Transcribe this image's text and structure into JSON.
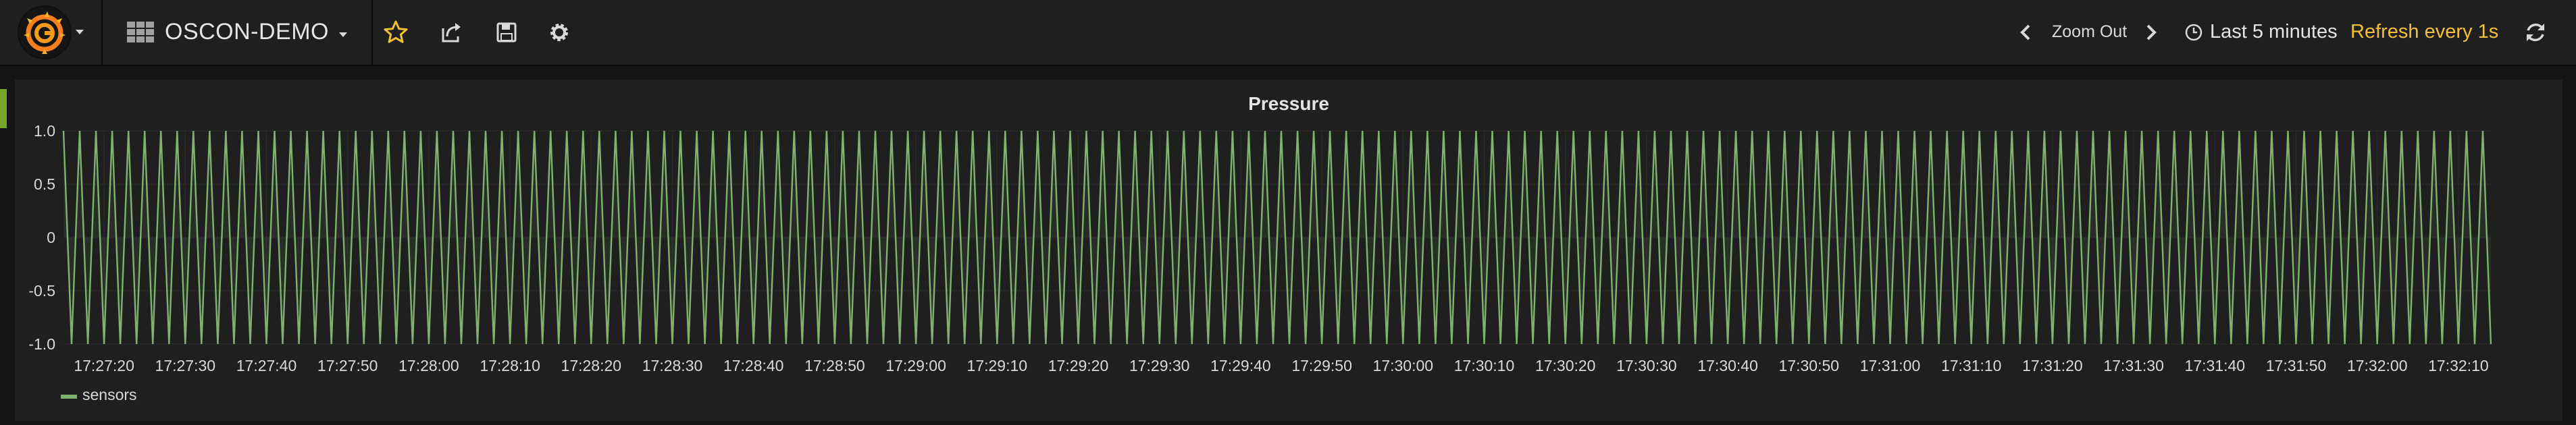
{
  "nav": {
    "dashboard_title": "OSCON-DEMO",
    "zoom_out_label": "Zoom Out",
    "time_range": "Last 5 minutes",
    "refresh": "Refresh every 1s"
  },
  "colors": {
    "accent_star": "#f2c037",
    "series_green": "#7eb26d",
    "refresh_text": "#f2c037",
    "row_marker": "#75a62b"
  },
  "panel": {
    "title": "Pressure"
  },
  "chart_data": {
    "type": "line",
    "title": "Pressure",
    "xlabel": "",
    "ylabel": "",
    "ylim": [
      -1.0,
      1.0
    ],
    "y_ticks": [
      "1.0",
      "0.5",
      "0",
      "-0.5",
      "-1.0"
    ],
    "x_ticks": [
      "17:27:20",
      "17:27:30",
      "17:27:40",
      "17:27:50",
      "17:28:00",
      "17:28:10",
      "17:28:20",
      "17:28:30",
      "17:28:40",
      "17:28:50",
      "17:29:00",
      "17:29:10",
      "17:29:20",
      "17:29:30",
      "17:29:40",
      "17:29:50",
      "17:30:00",
      "17:30:10",
      "17:30:20",
      "17:30:30",
      "17:30:40",
      "17:30:50",
      "17:31:00",
      "17:31:10",
      "17:31:20",
      "17:31:30",
      "17:31:40",
      "17:31:50",
      "17:32:00",
      "17:32:10"
    ],
    "x_range": [
      "17:27:15",
      "17:32:14"
    ],
    "series": [
      {
        "name": "sensors",
        "pattern": "oscillating between 1.0 and -1.0 once per second",
        "interval_seconds": 1,
        "values": [
          1,
          -1
        ]
      }
    ],
    "legend": {
      "placement": "bottom-left",
      "entries": [
        "sensors"
      ]
    },
    "grid": true
  }
}
